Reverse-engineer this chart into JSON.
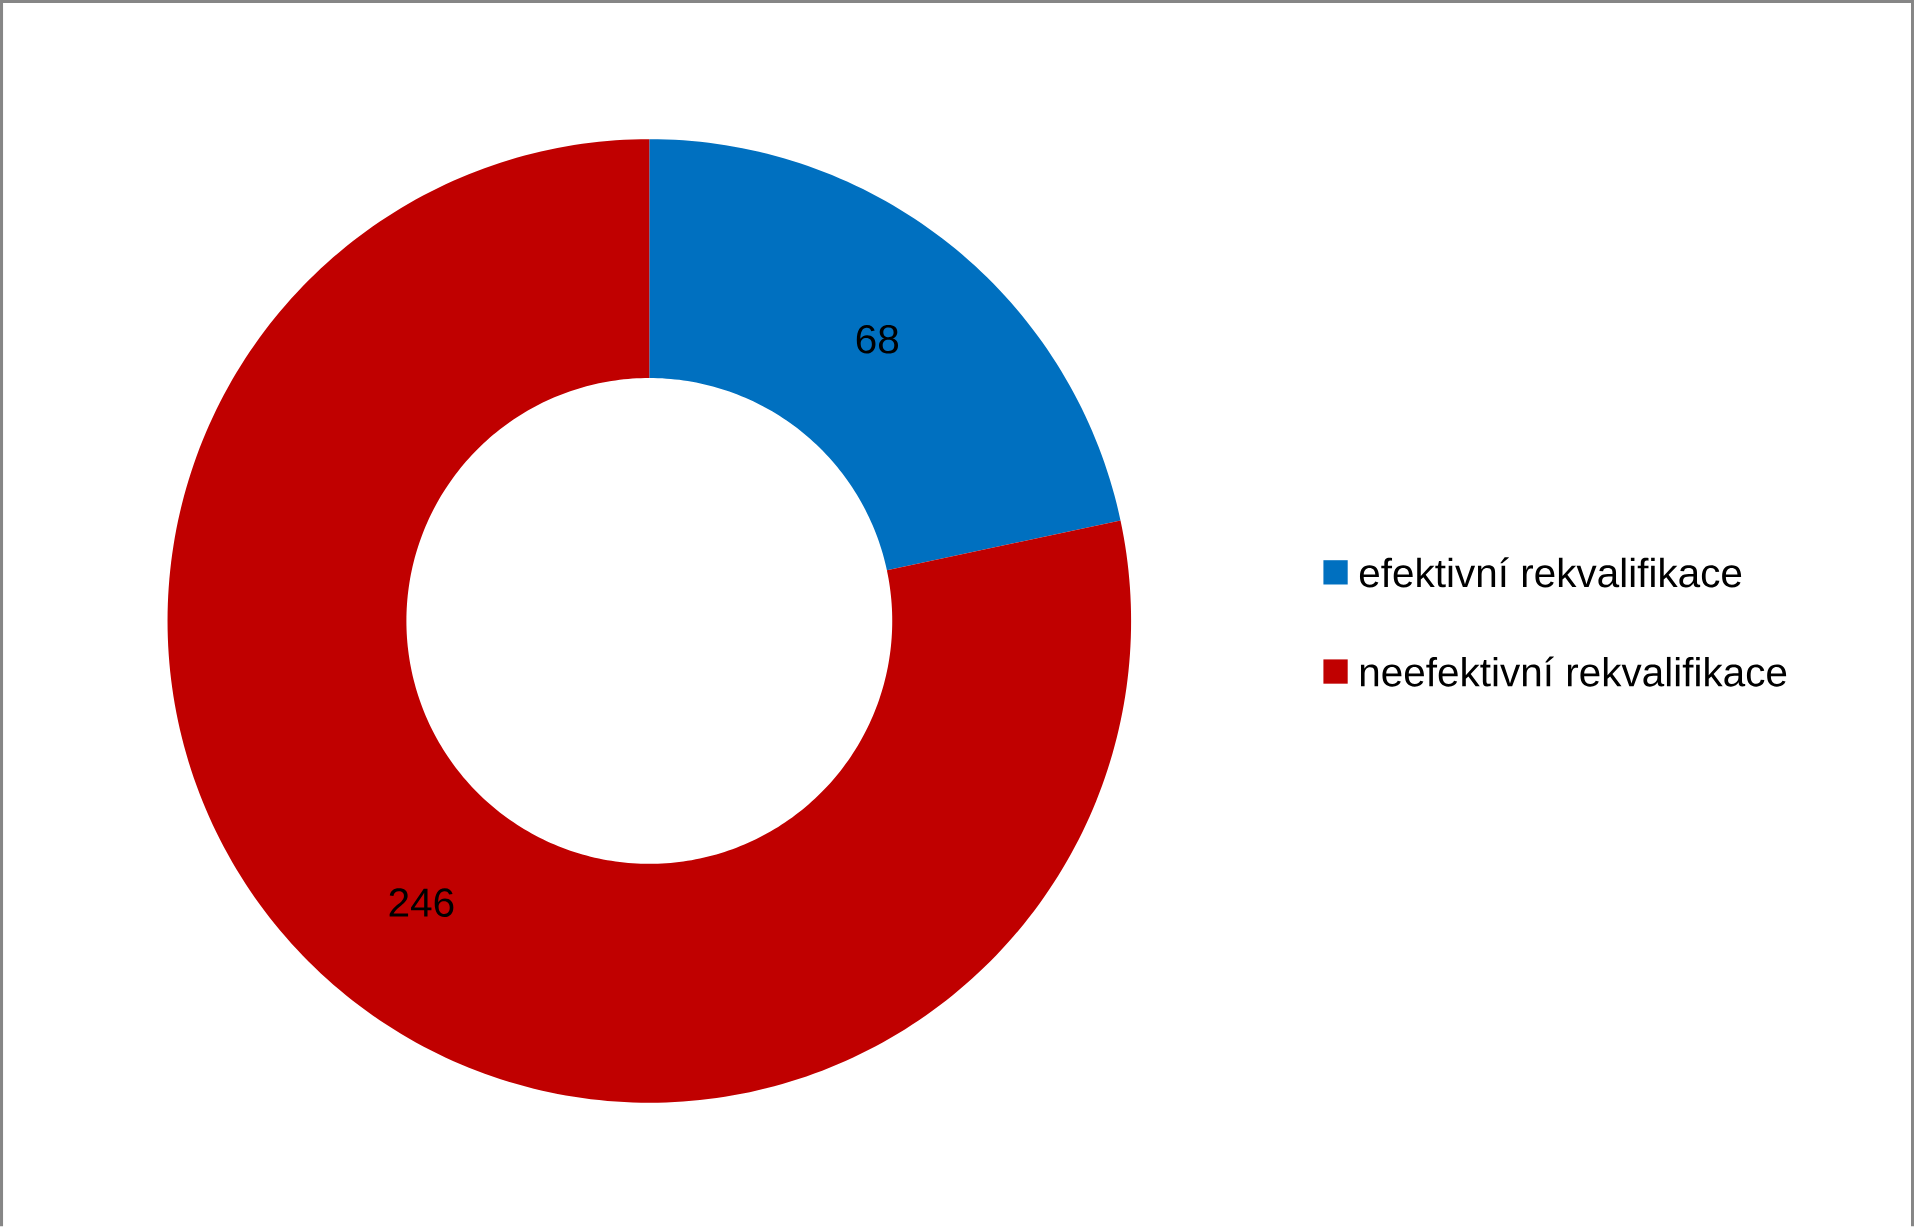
{
  "chart_data": {
    "type": "donut",
    "categories": [
      "efektivní rekvalifikace",
      "neefektivní rekvalifikace"
    ],
    "values": [
      68,
      246
    ],
    "colors": [
      "#0070c0",
      "#c00000"
    ],
    "data_labels": true,
    "legend": "right"
  }
}
